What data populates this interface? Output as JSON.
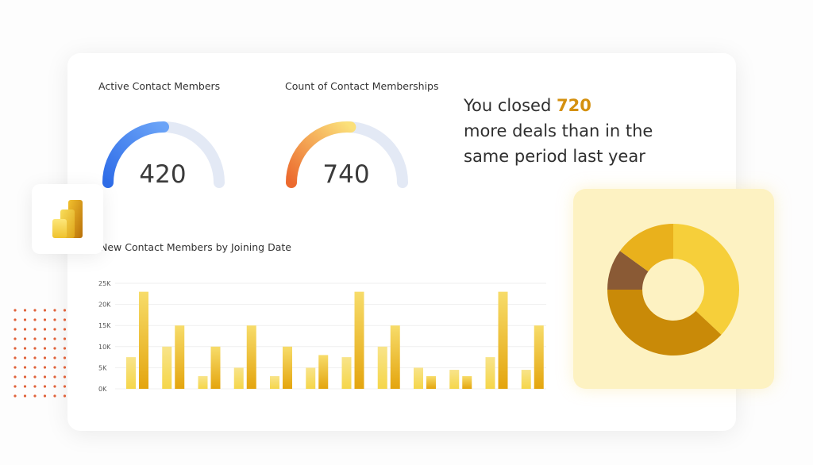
{
  "gauges": [
    {
      "title": "Active Contact Members",
      "value": "420",
      "fill_fraction": 0.5,
      "colors": [
        "#2f6de8",
        "#6aa3f7"
      ]
    },
    {
      "title": "Count of Contact Memberships",
      "value": "740",
      "fill_fraction": 0.52,
      "colors": [
        "#ec6a2e",
        "#fbe07a"
      ]
    }
  ],
  "headline": {
    "prefix": "You closed ",
    "highlight": "720",
    "line2": "more deals than in the",
    "line3": "same period last year",
    "highlight_color": "#d4900f"
  },
  "logo": {
    "icon": "power-bi-logo-icon"
  },
  "chart_data": [
    {
      "type": "bar",
      "title": "New Contact Members by Joining Date",
      "yticks": [
        "0K",
        "5K",
        "10K",
        "15K",
        "20K",
        "25K"
      ],
      "ylim": [
        0,
        25000
      ],
      "grid": true,
      "series": [
        {
          "values": [
            7500,
            10000,
            3000,
            5000,
            3000,
            5000,
            7500,
            10000,
            5000,
            4500,
            7500,
            4500
          ],
          "color": "#f5d64a"
        },
        {
          "values": [
            23000,
            15000,
            10000,
            15000,
            10000,
            8000,
            23000,
            15000,
            3000,
            3000,
            23000,
            15000
          ],
          "color": "#e4a50e"
        }
      ]
    },
    {
      "type": "pie",
      "donut": true,
      "values": [
        37,
        38,
        10,
        15
      ],
      "colors": [
        "#f6cf3a",
        "#c98a08",
        "#8a5a35",
        "#e9b11c"
      ]
    }
  ]
}
